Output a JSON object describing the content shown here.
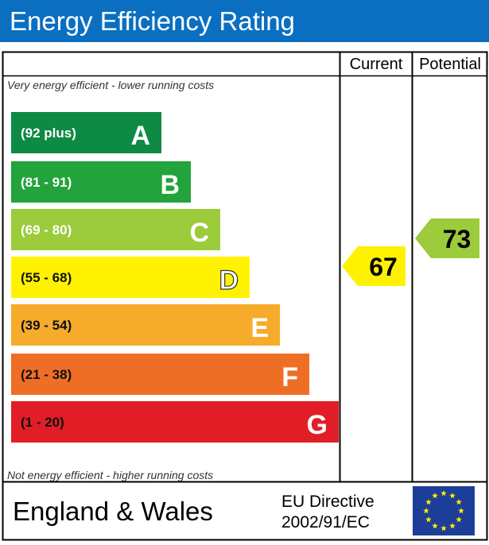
{
  "title": "Energy Efficiency Rating",
  "colors": {
    "header_bg": "#0a6fc0",
    "A": "#0d8a43",
    "B": "#22a33b",
    "C": "#9ccb3b",
    "D": "#fff200",
    "E": "#f6ac2a",
    "F": "#ef6e25",
    "G": "#e11e26",
    "eu_flag": "#1d3e98",
    "eu_stars": "#ffed00"
  },
  "chart_data": {
    "type": "bar",
    "columns": [
      "Current",
      "Potential"
    ],
    "top_caption": "Very energy efficient - lower running costs",
    "bottom_caption": "Not energy efficient - higher running costs",
    "bands": [
      {
        "letter": "A",
        "range": "(92 plus)"
      },
      {
        "letter": "B",
        "range": "(81 - 91)"
      },
      {
        "letter": "C",
        "range": "(69 - 80)"
      },
      {
        "letter": "D",
        "range": "(55 - 68)"
      },
      {
        "letter": "E",
        "range": "(39 - 54)"
      },
      {
        "letter": "F",
        "range": "(21 - 38)"
      },
      {
        "letter": "G",
        "range": "(1 - 20)"
      }
    ],
    "current": {
      "value": 67,
      "band": "D"
    },
    "potential": {
      "value": 73,
      "band": "C"
    }
  },
  "footer": {
    "region": "England & Wales",
    "directive_line1": "EU Directive",
    "directive_line2": "2002/91/EC",
    "flag_icon": "eu-flag-icon"
  }
}
